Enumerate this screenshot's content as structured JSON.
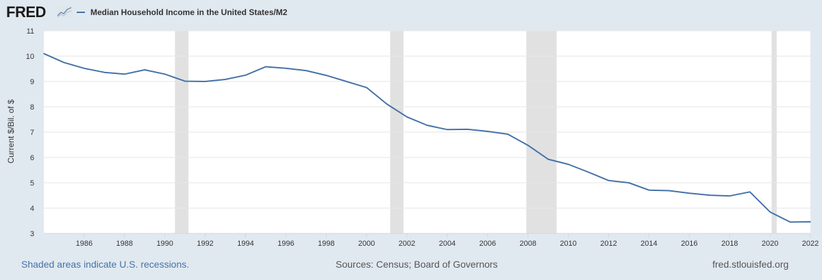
{
  "header": {
    "logo_text": "FRED",
    "legend_label": "Median Household Income in the United States/M2"
  },
  "footer": {
    "recessions_note": "Shaded areas indicate U.S. recessions.",
    "sources": "Sources: Census; Board of Governors",
    "site": "fred.stlouisfed.org"
  },
  "colors": {
    "line": "#4572a7",
    "recession": "#e1e1e1",
    "background": "#e1e9f0",
    "plot": "#ffffff",
    "grid": "#e6e6e6"
  },
  "chart_data": {
    "type": "line",
    "ylabel": "Current $/Bil. of $",
    "xlabel": "",
    "xlim": [
      1984,
      2022
    ],
    "ylim": [
      3,
      11
    ],
    "y_ticks": [
      3,
      4,
      5,
      6,
      7,
      8,
      9,
      10,
      11
    ],
    "x_ticks": [
      1986,
      1988,
      1990,
      1992,
      1994,
      1996,
      1998,
      2000,
      2002,
      2004,
      2006,
      2008,
      2010,
      2012,
      2014,
      2016,
      2018,
      2020,
      2022
    ],
    "grid": true,
    "recessions": [
      [
        1990.5,
        1991.17
      ],
      [
        2001.17,
        2001.83
      ],
      [
        2007.92,
        2009.42
      ],
      [
        2020.08,
        2020.33
      ]
    ],
    "series": [
      {
        "name": "Median Household Income in the United States/M2",
        "x": [
          1984,
          1985,
          1986,
          1987,
          1988,
          1989,
          1990,
          1991,
          1992,
          1993,
          1994,
          1995,
          1996,
          1997,
          1998,
          1999,
          2000,
          2001,
          2002,
          2003,
          2004,
          2005,
          2006,
          2007,
          2008,
          2009,
          2010,
          2011,
          2012,
          2013,
          2014,
          2015,
          2016,
          2017,
          2018,
          2019,
          2020,
          2021,
          2022
        ],
        "y": [
          10.1,
          9.75,
          9.52,
          9.36,
          9.29,
          9.46,
          9.29,
          9.01,
          9.0,
          9.08,
          9.25,
          9.58,
          9.52,
          9.43,
          9.24,
          9.0,
          8.76,
          8.11,
          7.6,
          7.27,
          7.1,
          7.11,
          7.03,
          6.92,
          6.48,
          5.93,
          5.73,
          5.42,
          5.09,
          5.0,
          4.71,
          4.69,
          4.59,
          4.51,
          4.48,
          4.64,
          3.85,
          3.45,
          3.46
        ]
      }
    ]
  }
}
